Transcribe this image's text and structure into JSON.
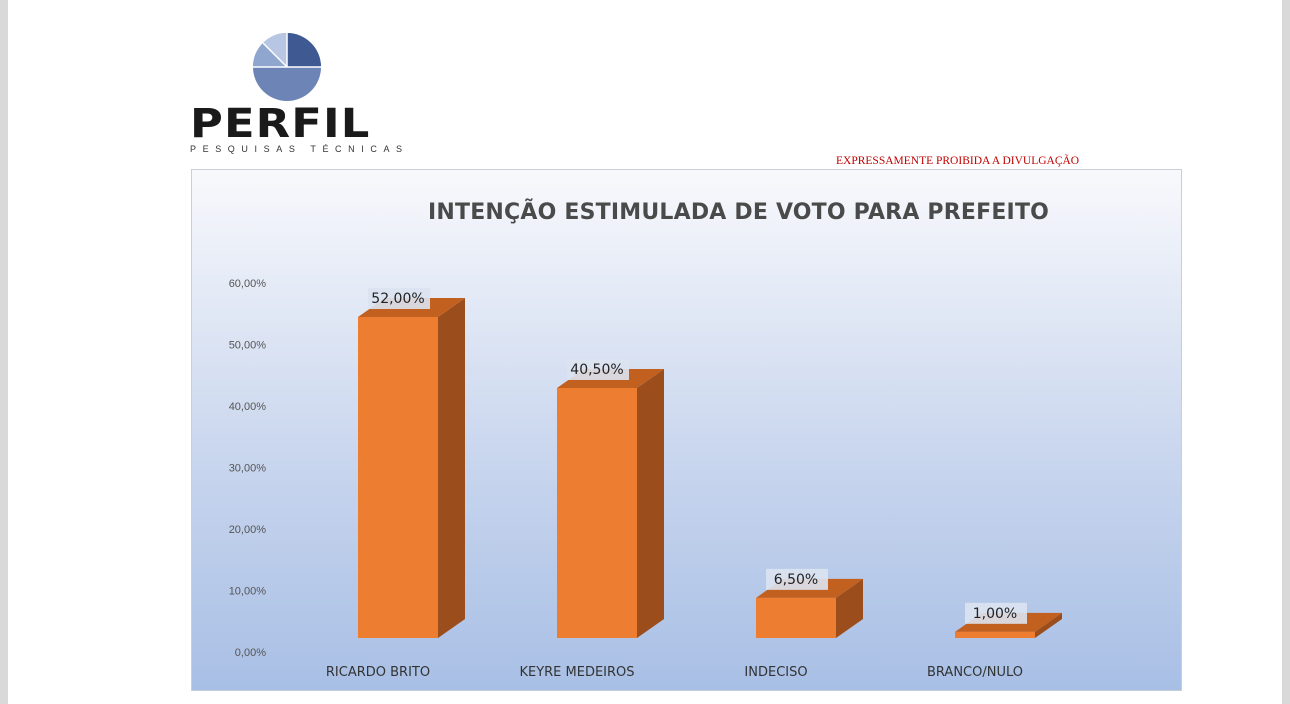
{
  "logo": {
    "word": "PERFIL",
    "subtitle": "PESQUISAS TÉCNICAS"
  },
  "warning": "EXPRESSAMENTE PROIBIDA A DIVULGAÇÃO",
  "colors": {
    "bar_front": "#ed7d31",
    "bar_side": "#9c4d1c",
    "bar_top": "#c2601f",
    "title": "#4a4a4a",
    "warning": "#c00000"
  },
  "chart_data": {
    "type": "bar",
    "title": "INTENÇÃO ESTIMULADA DE VOTO PARA PREFEITO",
    "categories": [
      "RICARDO BRITO",
      "KEYRE MEDEIROS",
      "INDECISO",
      "BRANCO/NULO"
    ],
    "values": [
      52.0,
      40.5,
      6.5,
      1.0
    ],
    "data_labels": [
      "52,00%",
      "40,50%",
      "6,50%",
      "1,00%"
    ],
    "yticks": [
      "0,00%",
      "10,00%",
      "20,00%",
      "30,00%",
      "40,00%",
      "50,00%",
      "60,00%"
    ],
    "ylim": [
      0,
      60
    ],
    "xlabel": "",
    "ylabel": "",
    "grid": false,
    "style": "3d-column"
  }
}
